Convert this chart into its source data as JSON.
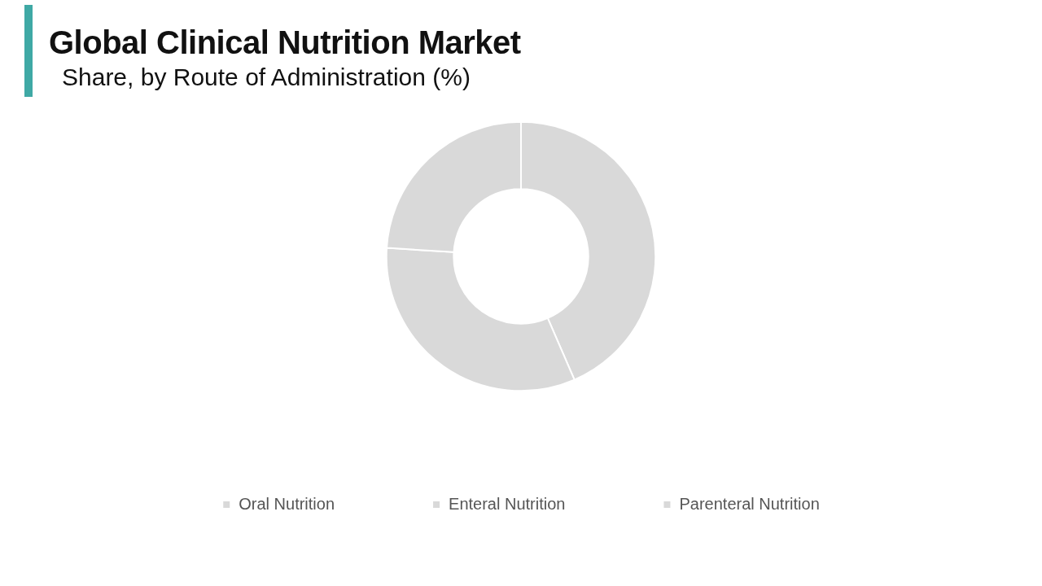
{
  "chart_data": {
    "type": "donut",
    "title": "Global Clinical Nutrition Market",
    "subtitle": "Share, by Route of Administration (%)",
    "categories": [
      "Oral Nutrition",
      "Enteral Nutrition",
      "Parenteral Nutrition"
    ],
    "values": [
      43.5,
      32.5,
      24
    ],
    "colors": [
      "#d9d9d9",
      "#d9d9d9",
      "#d9d9d9"
    ],
    "legend": "bottom"
  }
}
